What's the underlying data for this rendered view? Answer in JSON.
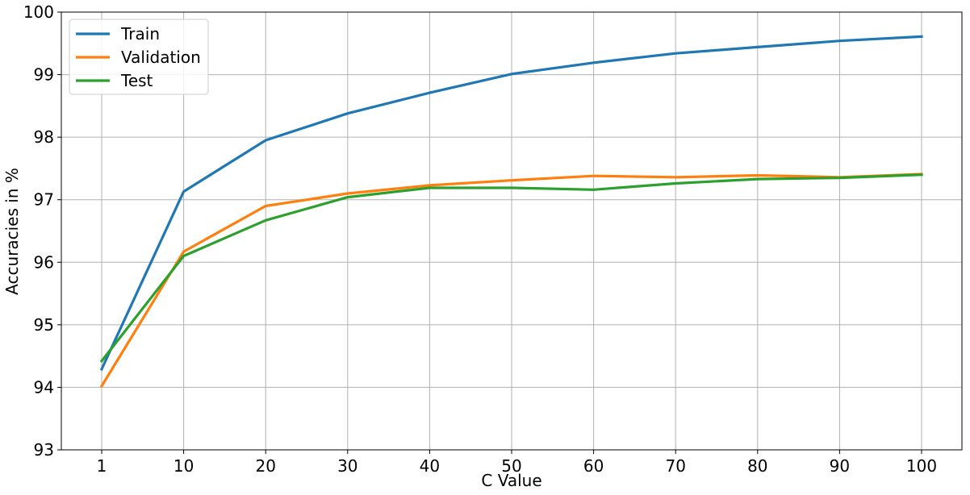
{
  "chart_data": {
    "type": "line",
    "x": [
      1,
      10,
      20,
      30,
      40,
      50,
      60,
      70,
      80,
      90,
      100
    ],
    "x_tick_labels": [
      "1",
      "10",
      "20",
      "30",
      "40",
      "50",
      "60",
      "70",
      "80",
      "90",
      "100"
    ],
    "xlabel": "C Value",
    "ylabel": "Accuracies in %",
    "ylim": [
      93,
      100
    ],
    "y_ticks": [
      93,
      94,
      95,
      96,
      97,
      98,
      99,
      100
    ],
    "grid": true,
    "legend_position": "top-left",
    "series": [
      {
        "name": "Train",
        "color": "#1f77b4",
        "values": [
          94.29,
          97.13,
          97.95,
          98.38,
          98.71,
          99.01,
          99.19,
          99.34,
          99.44,
          99.54,
          99.61
        ]
      },
      {
        "name": "Validation",
        "color": "#ff7f0e",
        "values": [
          94.02,
          96.17,
          96.9,
          97.1,
          97.23,
          97.31,
          97.38,
          97.36,
          97.39,
          97.36,
          97.41
        ]
      },
      {
        "name": "Test",
        "color": "#2ca02c",
        "values": [
          94.42,
          96.1,
          96.67,
          97.04,
          97.19,
          97.19,
          97.16,
          97.26,
          97.33,
          97.35,
          97.4
        ]
      }
    ]
  }
}
